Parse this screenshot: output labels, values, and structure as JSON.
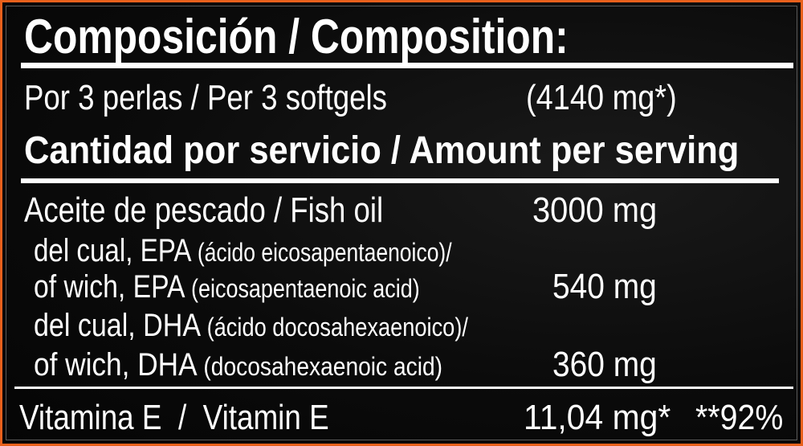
{
  "title": "Composición / Composition:",
  "serving": {
    "label": "Por 3 perlas / Per 3 softgels",
    "weight": "(4140 mg*)"
  },
  "subtitle": "Cantidad por servicio / Amount per serving",
  "rows": [
    {
      "label": "Aceite de pescado / Fish oil",
      "value": "3000 mg"
    },
    {
      "label_a": "del cual, EPA ",
      "label_b": "(ácido eicosapentaenoico)/"
    },
    {
      "label_a": "of wich, EPA ",
      "label_b": "(eicosapentaenoic acid)",
      "value": "540 mg"
    },
    {
      "label_a": "del cual, DHA ",
      "label_b": "(ácido docosahexaenoico)/"
    },
    {
      "label_a": "of wich, DHA ",
      "label_b": "(docosahexaenoic acid)",
      "value": "360 mg"
    }
  ],
  "vitamin": {
    "label": "Vitamina E  /  Vitamin E",
    "value": "11,04 mg*",
    "percent": "**92%"
  },
  "colors": {
    "border": "#e8601c",
    "background": "#0b0b0b",
    "text": "#ffffff"
  }
}
